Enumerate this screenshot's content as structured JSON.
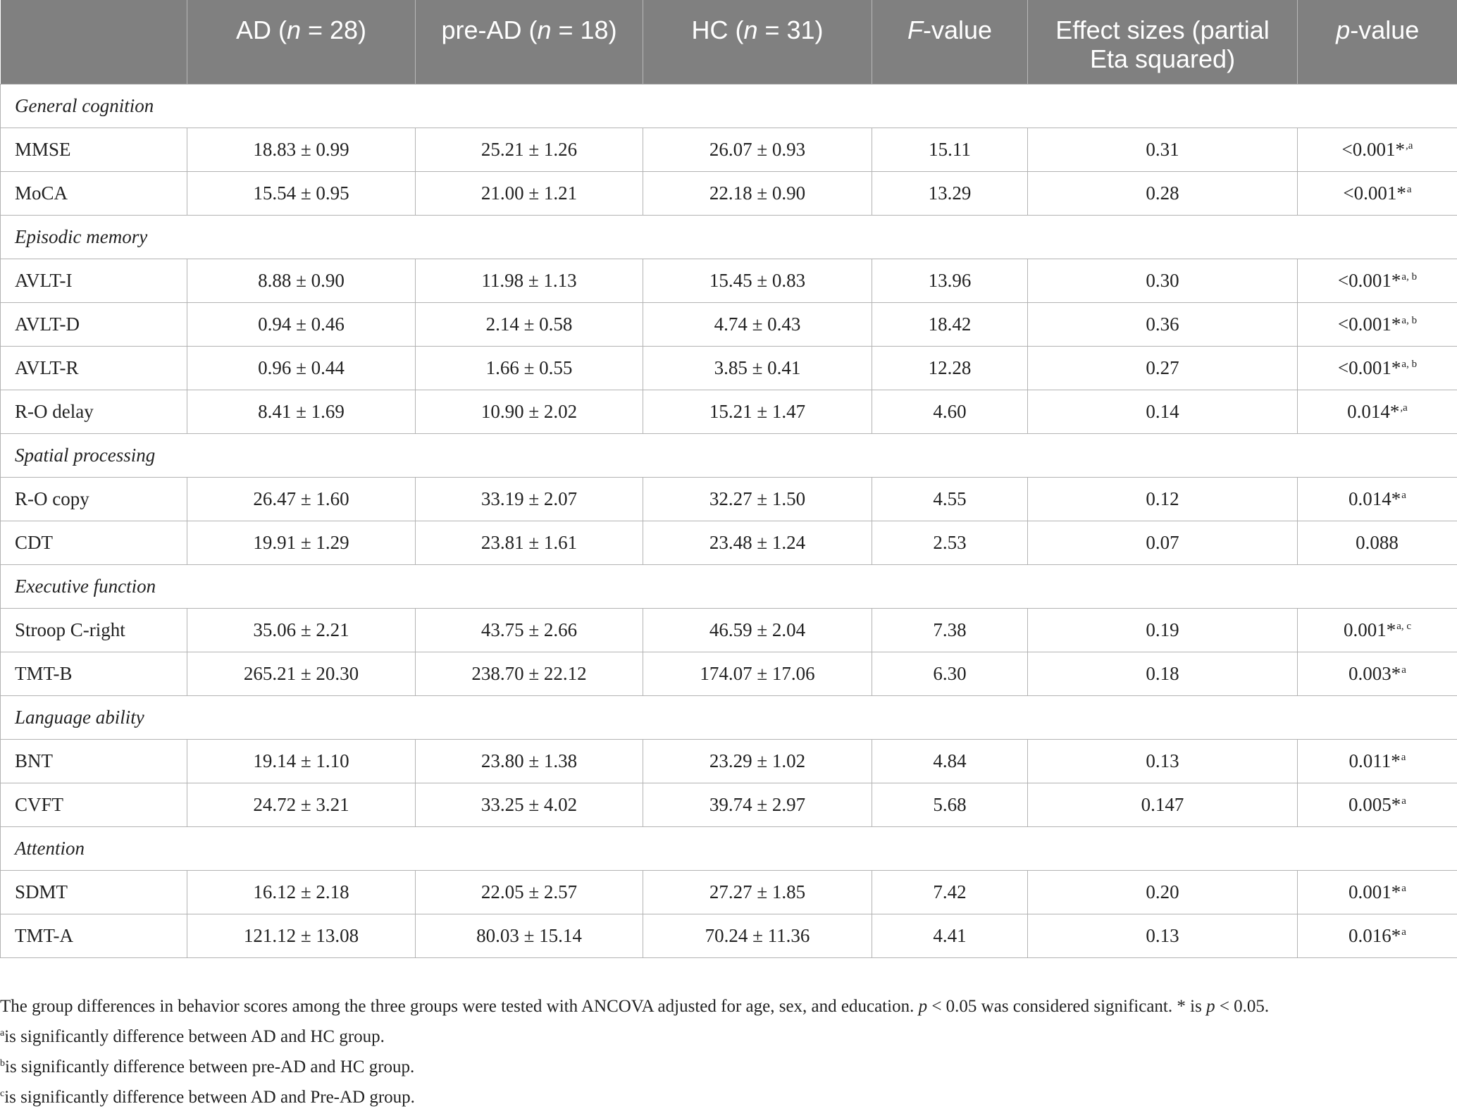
{
  "header": {
    "col0": "",
    "col1_pre": "AD (",
    "col1_n": "n",
    "col1_post": " = 28)",
    "col2_pre": "pre-AD (",
    "col2_n": "n",
    "col2_post": " = 18)",
    "col3_pre": "HC (",
    "col3_n": "n",
    "col3_post": " = 31)",
    "col4_it": "F",
    "col4_post": "-value",
    "col5": "Effect sizes (partial Eta squared)",
    "col6_it": "p",
    "col6_post": "-value"
  },
  "rows": [
    {
      "type": "section",
      "label": "General cognition"
    },
    {
      "type": "data",
      "label": "MMSE",
      "ad": "18.83 ± 0.99",
      "pread": "25.21 ± 1.26",
      "hc": "26.07 ± 0.93",
      "f": "15.11",
      "eta": "0.31",
      "p": "<0.001*",
      "sup": ",a"
    },
    {
      "type": "data",
      "label": "MoCA",
      "ad": "15.54 ± 0.95",
      "pread": "21.00 ± 1.21",
      "hc": "22.18 ± 0.90",
      "f": "13.29",
      "eta": "0.28",
      "p": "<0.001*",
      "sup": "a"
    },
    {
      "type": "section",
      "label": "Episodic memory"
    },
    {
      "type": "data",
      "label": "AVLT-I",
      "ad": "8.88 ± 0.90",
      "pread": "11.98 ± 1.13",
      "hc": "15.45 ± 0.83",
      "f": "13.96",
      "eta": "0.30",
      "p": "<0.001*",
      "sup": "a, b"
    },
    {
      "type": "data",
      "label": "AVLT-D",
      "ad": "0.94 ± 0.46",
      "pread": "2.14 ± 0.58",
      "hc": "4.74 ± 0.43",
      "f": "18.42",
      "eta": "0.36",
      "p": "<0.001*",
      "sup": "a, b"
    },
    {
      "type": "data",
      "label": "AVLT-R",
      "ad": "0.96 ± 0.44",
      "pread": "1.66 ± 0.55",
      "hc": "3.85 ± 0.41",
      "f": "12.28",
      "eta": "0.27",
      "p": "<0.001*",
      "sup": "a, b"
    },
    {
      "type": "data",
      "label": "R-O delay",
      "ad": "8.41 ± 1.69",
      "pread": "10.90 ± 2.02",
      "hc": "15.21 ± 1.47",
      "f": "4.60",
      "eta": "0.14",
      "p": "0.014*",
      "sup": ",a"
    },
    {
      "type": "section",
      "label": "Spatial processing"
    },
    {
      "type": "data",
      "label": "R-O copy",
      "ad": "26.47 ± 1.60",
      "pread": "33.19 ± 2.07",
      "hc": "32.27 ± 1.50",
      "f": "4.55",
      "eta": "0.12",
      "p": "0.014*",
      "sup": "a"
    },
    {
      "type": "data",
      "label": "CDT",
      "ad": "19.91 ± 1.29",
      "pread": "23.81 ± 1.61",
      "hc": "23.48 ± 1.24",
      "f": "2.53",
      "eta": "0.07",
      "p": "0.088",
      "sup": ""
    },
    {
      "type": "section",
      "label": "Executive function"
    },
    {
      "type": "data",
      "label": "Stroop C-right",
      "ad": "35.06 ± 2.21",
      "pread": "43.75 ± 2.66",
      "hc": "46.59 ± 2.04",
      "f": "7.38",
      "eta": "0.19",
      "p": "0.001*",
      "sup": "a, c"
    },
    {
      "type": "data",
      "label": "TMT-B",
      "ad": "265.21 ± 20.30",
      "pread": "238.70 ± 22.12",
      "hc": "174.07 ± 17.06",
      "f": "6.30",
      "eta": "0.18",
      "p": "0.003*",
      "sup": "a"
    },
    {
      "type": "section",
      "label": "Language ability"
    },
    {
      "type": "data",
      "label": "BNT",
      "ad": "19.14 ± 1.10",
      "pread": "23.80 ± 1.38",
      "hc": "23.29 ± 1.02",
      "f": "4.84",
      "eta": "0.13",
      "p": "0.011*",
      "sup": "a"
    },
    {
      "type": "data",
      "label": "CVFT",
      "ad": "24.72 ± 3.21",
      "pread": "33.25 ± 4.02",
      "hc": "39.74 ± 2.97",
      "f": "5.68",
      "eta": "0.147",
      "p": "0.005*",
      "sup": "a"
    },
    {
      "type": "section",
      "label": "Attention"
    },
    {
      "type": "data",
      "label": "SDMT",
      "ad": "16.12 ± 2.18",
      "pread": "22.05 ± 2.57",
      "hc": "27.27 ± 1.85",
      "f": "7.42",
      "eta": "0.20",
      "p": "0.001*",
      "sup": "a"
    },
    {
      "type": "data",
      "label": "TMT-A",
      "ad": "121.12 ± 13.08",
      "pread": "80.03 ± 15.14",
      "hc": "70.24 ± 11.36",
      "f": "4.41",
      "eta": "0.13",
      "p": "0.016*",
      "sup": "a"
    }
  ],
  "notes": {
    "main_a": "The group differences in behavior scores among the three groups were tested with ANCOVA adjusted for age, sex, and education. ",
    "main_p1": "p",
    "main_b": " < 0.05 was considered significant. * is ",
    "main_p2": "p",
    "main_c": " < 0.05.",
    "fa_sup": "a",
    "fa": "is significantly difference between AD and HC group.",
    "fb_sup": "b",
    "fb": "is significantly difference between pre-AD and HC group.",
    "fc_sup": "c",
    "fc": "is significantly difference between AD and Pre-AD group."
  }
}
